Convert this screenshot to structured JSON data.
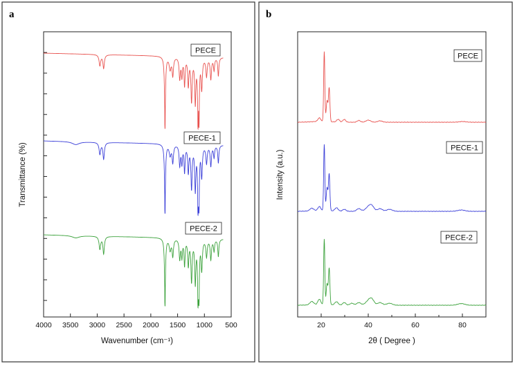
{
  "panels": {
    "a": {
      "letter": "a"
    },
    "b": {
      "letter": "b"
    }
  },
  "chart_data": [
    {
      "type": "line",
      "panel": "a",
      "title": "",
      "xlabel": "Wavenumber (cm⁻¹)",
      "ylabel": "Transmittance (%)",
      "xlim": [
        4000,
        500
      ],
      "x_ticks": [
        4000,
        3500,
        3000,
        2500,
        2000,
        1500,
        1000,
        500
      ],
      "x_tick_labels": [
        "4000",
        "3500",
        "3000",
        "2500",
        "2000",
        "1500",
        "1000",
        "500"
      ],
      "y_ticks_count": 13,
      "y_tick_labels_shown": false,
      "grid": false,
      "series": [
        {
          "name": "PECE",
          "color": "#e8514e",
          "baseline": 0,
          "x_end": 650,
          "bands": [
            [
              2950,
              0.18,
              18
            ],
            [
              2880,
              0.22,
              16
            ],
            [
              1735,
              1.0,
              12
            ],
            [
              1640,
              0.2,
              20
            ],
            [
              1590,
              0.3,
              15
            ],
            [
              1460,
              0.35,
              14
            ],
            [
              1420,
              0.3,
              12
            ],
            [
              1370,
              0.45,
              12
            ],
            [
              1300,
              0.45,
              13
            ],
            [
              1240,
              0.7,
              14
            ],
            [
              1170,
              0.72,
              13
            ],
            [
              1120,
              0.78,
              12
            ],
            [
              1100,
              0.7,
              10
            ],
            [
              1050,
              0.5,
              14
            ],
            [
              960,
              0.3,
              15
            ],
            [
              880,
              0.35,
              14
            ],
            [
              820,
              0.2,
              12
            ],
            [
              740,
              0.3,
              12
            ]
          ]
        },
        {
          "name": "PECE-1",
          "color": "#3b3fd8",
          "baseline": 1,
          "x_end": 650,
          "bands": [
            [
              3400,
              0.05,
              80
            ],
            [
              2950,
              0.2,
              18
            ],
            [
              2880,
              0.28,
              16
            ],
            [
              1735,
              1.0,
              12
            ],
            [
              1640,
              0.18,
              20
            ],
            [
              1590,
              0.3,
              15
            ],
            [
              1460,
              0.35,
              14
            ],
            [
              1420,
              0.3,
              12
            ],
            [
              1370,
              0.45,
              12
            ],
            [
              1300,
              0.45,
              13
            ],
            [
              1240,
              0.72,
              14
            ],
            [
              1170,
              0.74,
              13
            ],
            [
              1120,
              0.8,
              12
            ],
            [
              1100,
              0.7,
              10
            ],
            [
              1050,
              0.52,
              14
            ],
            [
              960,
              0.3,
              15
            ],
            [
              880,
              0.35,
              14
            ],
            [
              820,
              0.2,
              12
            ],
            [
              740,
              0.3,
              12
            ]
          ]
        },
        {
          "name": "PECE-2",
          "color": "#3aa13a",
          "baseline": 2,
          "x_end": 650,
          "bands": [
            [
              3400,
              0.04,
              80
            ],
            [
              2950,
              0.22,
              18
            ],
            [
              2880,
              0.3,
              16
            ],
            [
              1735,
              1.0,
              12
            ],
            [
              1640,
              0.2,
              20
            ],
            [
              1590,
              0.3,
              15
            ],
            [
              1460,
              0.35,
              14
            ],
            [
              1420,
              0.3,
              12
            ],
            [
              1370,
              0.45,
              12
            ],
            [
              1300,
              0.45,
              13
            ],
            [
              1240,
              0.72,
              14
            ],
            [
              1170,
              0.74,
              13
            ],
            [
              1120,
              0.8,
              12
            ],
            [
              1100,
              0.7,
              10
            ],
            [
              1050,
              0.52,
              14
            ],
            [
              960,
              0.3,
              15
            ],
            [
              880,
              0.35,
              14
            ],
            [
              820,
              0.2,
              12
            ],
            [
              740,
              0.3,
              12
            ]
          ]
        }
      ],
      "legend": [
        "PECE",
        "PECE-1",
        "PECE-2"
      ]
    },
    {
      "type": "line",
      "panel": "b",
      "title": "",
      "xlabel": "2θ ( Degree )",
      "ylabel": "Intensity (a.u.)",
      "xlim": [
        10,
        90
      ],
      "x_ticks": [
        20,
        40,
        60,
        80
      ],
      "x_tick_labels": [
        "20",
        "40",
        "60",
        "80"
      ],
      "y_tick_labels_shown": false,
      "grid": false,
      "series": [
        {
          "name": "PECE",
          "color": "#e8514e",
          "offset": 2,
          "scale": 0.72,
          "peaks": [
            [
              19.2,
              0.05,
              0.6
            ],
            [
              21.3,
              1.0,
              0.25
            ],
            [
              22.5,
              0.3,
              0.35
            ],
            [
              23.4,
              0.48,
              0.3
            ],
            [
              27.2,
              0.04,
              0.6
            ],
            [
              29.8,
              0.04,
              0.6
            ],
            [
              36.0,
              0.025,
              0.7
            ],
            [
              40.0,
              0.03,
              1.0
            ],
            [
              45.0,
              0.02,
              1.0
            ],
            [
              80.0,
              0.01,
              1.5
            ]
          ]
        },
        {
          "name": "PECE-1",
          "color": "#3b3fd8",
          "offset": 1,
          "scale": 0.72,
          "peaks": [
            [
              16.0,
              0.04,
              0.8
            ],
            [
              19.2,
              0.06,
              0.6
            ],
            [
              21.3,
              1.0,
              0.25
            ],
            [
              22.5,
              0.35,
              0.35
            ],
            [
              23.4,
              0.55,
              0.3
            ],
            [
              26.5,
              0.05,
              0.7
            ],
            [
              29.8,
              0.03,
              0.7
            ],
            [
              36.0,
              0.04,
              0.9
            ],
            [
              40.0,
              0.06,
              1.2
            ],
            [
              41.5,
              0.07,
              1.0
            ],
            [
              45.0,
              0.04,
              1.0
            ],
            [
              49.0,
              0.03,
              1.2
            ],
            [
              79.5,
              0.02,
              1.5
            ]
          ]
        },
        {
          "name": "PECE-2",
          "color": "#3aa13a",
          "offset": 0,
          "scale": 0.72,
          "peaks": [
            [
              16.0,
              0.05,
              0.8
            ],
            [
              19.2,
              0.08,
              0.6
            ],
            [
              21.3,
              1.0,
              0.25
            ],
            [
              22.5,
              0.32,
              0.35
            ],
            [
              23.4,
              0.55,
              0.3
            ],
            [
              26.5,
              0.05,
              0.7
            ],
            [
              29.8,
              0.04,
              0.7
            ],
            [
              33.0,
              0.03,
              0.8
            ],
            [
              36.0,
              0.04,
              0.9
            ],
            [
              40.0,
              0.06,
              1.2
            ],
            [
              41.5,
              0.08,
              1.0
            ],
            [
              45.0,
              0.04,
              1.0
            ],
            [
              49.0,
              0.03,
              1.2
            ],
            [
              79.5,
              0.025,
              1.5
            ]
          ]
        }
      ],
      "legend": [
        "PECE",
        "PECE-1",
        "PECE-2"
      ]
    }
  ]
}
